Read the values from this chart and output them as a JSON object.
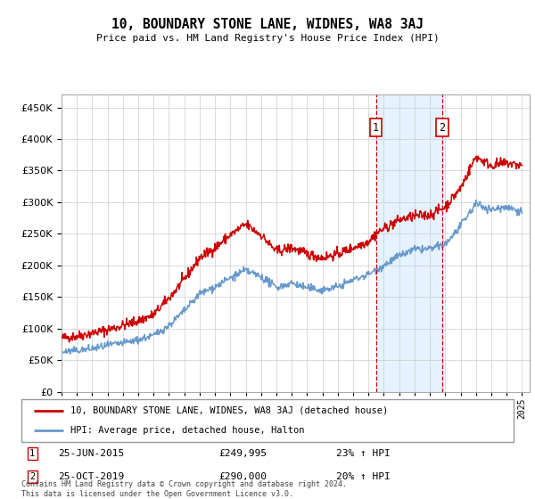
{
  "title": "10, BOUNDARY STONE LANE, WIDNES, WA8 3AJ",
  "subtitle": "Price paid vs. HM Land Registry's House Price Index (HPI)",
  "ylim": [
    0,
    470000
  ],
  "yticks": [
    0,
    50000,
    100000,
    150000,
    200000,
    250000,
    300000,
    350000,
    400000,
    450000
  ],
  "background_color": "#ffffff",
  "grid_color": "#cccccc",
  "plot_bg_color": "#ffffff",
  "red_line_color": "#cc0000",
  "blue_line_color": "#6699cc",
  "blue_fill_color": "#ddeeff",
  "marker1_date_x": 2015.48,
  "marker2_date_x": 2019.81,
  "marker1_label": "25-JUN-2015",
  "marker1_price": "£249,995",
  "marker1_pct": "23% ↑ HPI",
  "marker2_label": "25-OCT-2019",
  "marker2_price": "£290,000",
  "marker2_pct": "20% ↑ HPI",
  "legend1": "10, BOUNDARY STONE LANE, WIDNES, WA8 3AJ (detached house)",
  "legend2": "HPI: Average price, detached house, Halton",
  "footer": "Contains HM Land Registry data © Crown copyright and database right 2024.\nThis data is licensed under the Open Government Licence v3.0.",
  "xmin": 1995.0,
  "xmax": 2025.5,
  "red_pts": [
    [
      1995.0,
      85000
    ],
    [
      1996.0,
      88000
    ],
    [
      1997.0,
      93000
    ],
    [
      1998.0,
      98000
    ],
    [
      1999.0,
      105000
    ],
    [
      2000.0,
      112000
    ],
    [
      2001.0,
      122000
    ],
    [
      2002.0,
      148000
    ],
    [
      2003.0,
      178000
    ],
    [
      2004.0,
      212000
    ],
    [
      2005.0,
      228000
    ],
    [
      2006.0,
      248000
    ],
    [
      2007.0,
      265000
    ],
    [
      2008.0,
      248000
    ],
    [
      2009.0,
      222000
    ],
    [
      2010.0,
      228000
    ],
    [
      2011.0,
      218000
    ],
    [
      2012.0,
      212000
    ],
    [
      2013.0,
      218000
    ],
    [
      2014.0,
      228000
    ],
    [
      2015.0,
      238000
    ],
    [
      2015.48,
      249995
    ],
    [
      2016.0,
      258000
    ],
    [
      2017.0,
      272000
    ],
    [
      2018.0,
      278000
    ],
    [
      2019.0,
      280000
    ],
    [
      2019.81,
      290000
    ],
    [
      2020.0,
      293000
    ],
    [
      2021.0,
      322000
    ],
    [
      2022.0,
      372000
    ],
    [
      2023.0,
      358000
    ],
    [
      2024.0,
      362000
    ],
    [
      2025.0,
      358000
    ]
  ],
  "blue_pts": [
    [
      1995.0,
      63000
    ],
    [
      1996.0,
      65000
    ],
    [
      1997.0,
      68000
    ],
    [
      1998.0,
      73000
    ],
    [
      1999.0,
      77000
    ],
    [
      2000.0,
      82000
    ],
    [
      2001.0,
      89000
    ],
    [
      2002.0,
      105000
    ],
    [
      2003.0,
      128000
    ],
    [
      2004.0,
      155000
    ],
    [
      2005.0,
      166000
    ],
    [
      2006.0,
      180000
    ],
    [
      2007.0,
      192000
    ],
    [
      2008.0,
      182000
    ],
    [
      2009.0,
      165000
    ],
    [
      2010.0,
      172000
    ],
    [
      2011.0,
      164000
    ],
    [
      2012.0,
      161000
    ],
    [
      2013.0,
      166000
    ],
    [
      2014.0,
      177000
    ],
    [
      2015.0,
      186000
    ],
    [
      2016.0,
      200000
    ],
    [
      2017.0,
      215000
    ],
    [
      2018.0,
      225000
    ],
    [
      2019.0,
      226000
    ],
    [
      2020.0,
      233000
    ],
    [
      2021.0,
      262000
    ],
    [
      2022.0,
      298000
    ],
    [
      2023.0,
      288000
    ],
    [
      2024.0,
      293000
    ],
    [
      2025.0,
      285000
    ]
  ]
}
